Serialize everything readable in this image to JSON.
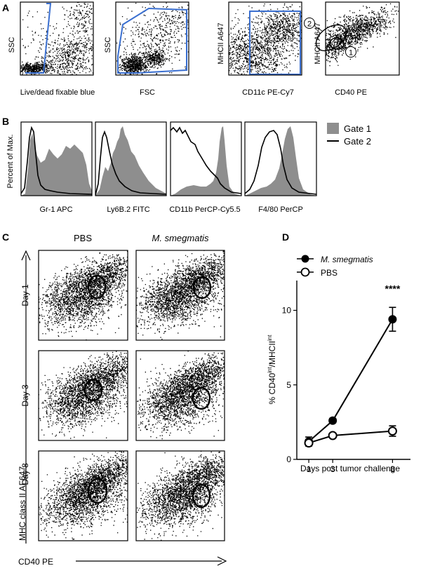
{
  "panels": {
    "A": {
      "letter": "A",
      "plots": [
        {
          "ylabel": "SSC",
          "xlabel": "Live/dead fixable blue"
        },
        {
          "ylabel": "SSC",
          "xlabel": "FSC"
        },
        {
          "ylabel": "MHCII A647",
          "xlabel": "CD11c PE-Cy7"
        },
        {
          "ylabel": "MHCII A647",
          "xlabel": "CD40 PE",
          "gate_labels": [
            "2",
            "1"
          ]
        }
      ]
    },
    "B": {
      "letter": "B",
      "ylabel": "Percent of Max.",
      "plots": [
        {
          "xlabel": "Gr-1 APC"
        },
        {
          "xlabel": "Ly6B.2 FITC"
        },
        {
          "xlabel": "CD11b PerCP-Cy5.5"
        },
        {
          "xlabel": "F4/80 PerCP"
        }
      ],
      "legend": [
        {
          "label": "Gate 1",
          "color": "#8e8e8e"
        },
        {
          "label": "Gate 2",
          "color": "#000000"
        }
      ]
    },
    "C": {
      "letter": "C",
      "columns": [
        "PBS",
        "M. smegmatis"
      ],
      "rows": [
        "Day 1",
        "Day 3",
        "Day 8"
      ],
      "ylabel": "MHC class II AF647",
      "xlabel": "CD40 PE"
    },
    "D": {
      "letter": "D"
    }
  },
  "chart_data": {
    "type": "line",
    "xlabel": "Days post tumor challenge",
    "ylabel_parts": {
      "prefix": "% CD40",
      "sup1": "int",
      "mid": "/MHCII",
      "sup2": "int"
    },
    "x": [
      1,
      3,
      8
    ],
    "x_ticks": [
      "1",
      "3",
      "8"
    ],
    "y_ticks": [
      "0",
      "5",
      "10"
    ],
    "ylim": [
      0,
      12
    ],
    "series": [
      {
        "name": "M. smegmatis",
        "marker": "filled-circle",
        "values": [
          1.2,
          2.6,
          9.4
        ],
        "errors": [
          0.3,
          0.15,
          0.8
        ]
      },
      {
        "name": "PBS",
        "marker": "open-circle",
        "values": [
          1.1,
          1.6,
          1.9
        ],
        "errors": [
          0.2,
          0.1,
          0.35
        ]
      }
    ],
    "annotation": {
      "text": "****",
      "x": 8
    }
  }
}
